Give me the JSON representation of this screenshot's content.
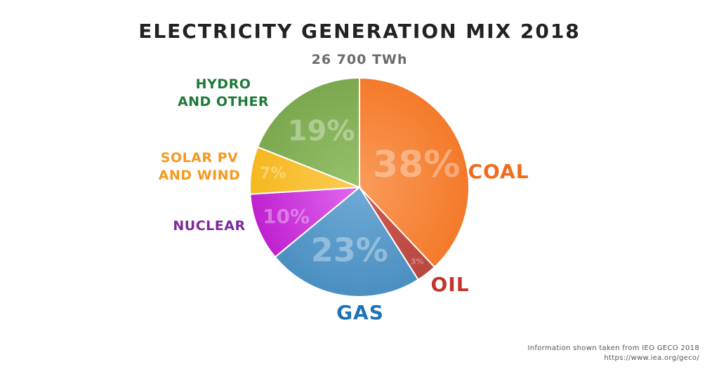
{
  "title": "ELECTRICITY GENERATION MIX 2018",
  "subtitle": "26 700 TWh",
  "source": {
    "line1": "Information shown taken from IEO GECO 2018",
    "line2": "https://www.iea.org/geco/"
  },
  "chart_data": {
    "type": "pie",
    "title": "ELECTRICITY GENERATION MIX 2018",
    "subtitle": "26 700 TWh",
    "slices": [
      {
        "name": "COAL",
        "value": 38,
        "label": "38%",
        "color": "#f47a2a",
        "light": "#fa9b5a",
        "label_color": "#f26b1d"
      },
      {
        "name": "OIL",
        "value": 3,
        "label": "3%",
        "color": "#b84740",
        "light": "#cf5b52",
        "label_color": "#c1352d"
      },
      {
        "name": "GAS",
        "value": 23,
        "label": "23%",
        "color": "#4a8fc1",
        "light": "#6faad6",
        "label_color": "#1f74b8"
      },
      {
        "name": "NUCLEAR",
        "value": 10,
        "label": "10%",
        "color": "#c020d0",
        "light": "#e06af0",
        "label_color": "#7b2a9b"
      },
      {
        "name": "SOLAR PV AND WIND",
        "value": 7,
        "label": "7%",
        "color": "#f6b820",
        "light": "#fbcc55",
        "label_color": "#f39a21"
      },
      {
        "name": "HYDRO AND OTHER",
        "value": 19,
        "label": "19%",
        "color": "#7ba84f",
        "light": "#97c26c",
        "label_color": "#1f7a3a"
      }
    ]
  }
}
